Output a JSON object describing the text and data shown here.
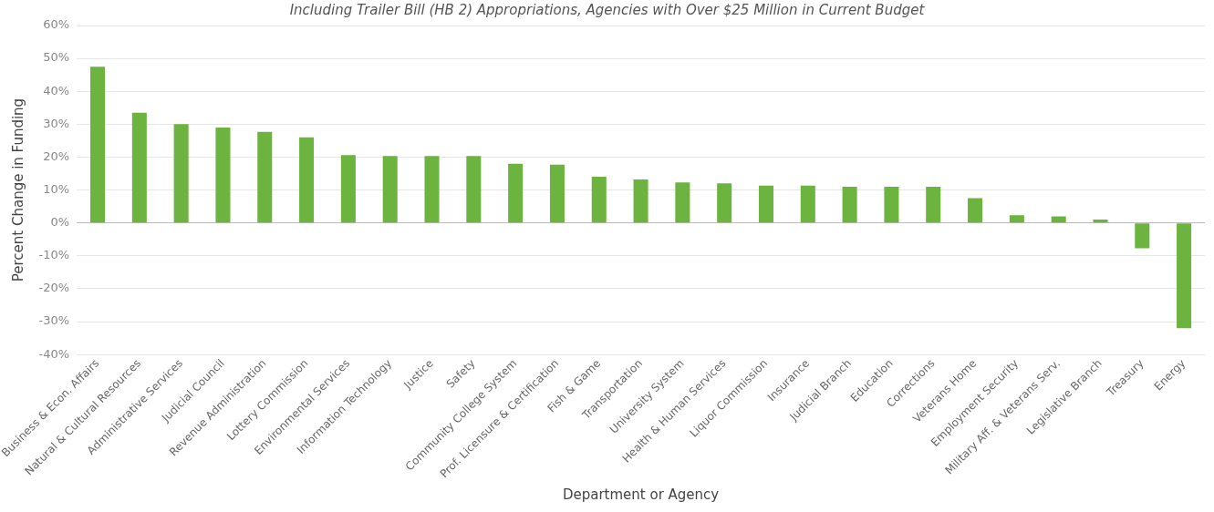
{
  "chart_data": {
    "type": "bar",
    "subtitle": "Including Trailer Bill (HB 2) Appropriations, Agencies with Over $25 Million in Current Budget",
    "xlabel": "Department or Agency",
    "ylabel": "Percent Change in Funding",
    "categories": [
      "Business & Econ. Affairs",
      "Natural & Cultural Resources",
      "Administrative Services",
      "Judicial Council",
      "Revenue Administration",
      "Lottery Commission",
      "Environmental Services",
      "Information Technology",
      "Justice",
      "Safety",
      "Community College System",
      "Prof. Licensure & Certification",
      "Fish & Game",
      "Transportation",
      "University System",
      "Health & Human Services",
      "Liquor Commission",
      "Insurance",
      "Judicial Branch",
      "Education",
      "Corrections",
      "Veterans Home",
      "Employment Security",
      "Military Aff. & Veterans Serv.",
      "Legislative Branch",
      "Treasury",
      "Energy"
    ],
    "values": [
      47.5,
      33.5,
      30,
      29,
      27.7,
      26,
      20.6,
      20.3,
      20.3,
      20.3,
      18,
      17.7,
      14,
      13.2,
      12.3,
      12,
      11.3,
      11.3,
      11,
      11,
      11,
      7.5,
      2.3,
      2,
      1,
      -7.7,
      -32
    ],
    "color": "#6db33f",
    "ylim": [
      -40,
      60
    ],
    "yticks": [
      {
        "value": -40,
        "label": "-40%"
      },
      {
        "value": -30,
        "label": "-30%"
      },
      {
        "value": -20,
        "label": "-20%"
      },
      {
        "value": -10,
        "label": "-10%"
      },
      {
        "value": 0,
        "label": "0%"
      },
      {
        "value": 10,
        "label": "10%"
      },
      {
        "value": 20,
        "label": "20%"
      },
      {
        "value": 30,
        "label": "30%"
      },
      {
        "value": 40,
        "label": "40%"
      },
      {
        "value": 50,
        "label": "50%"
      },
      {
        "value": 60,
        "label": "60%"
      }
    ],
    "grid": "y",
    "legend": false
  }
}
